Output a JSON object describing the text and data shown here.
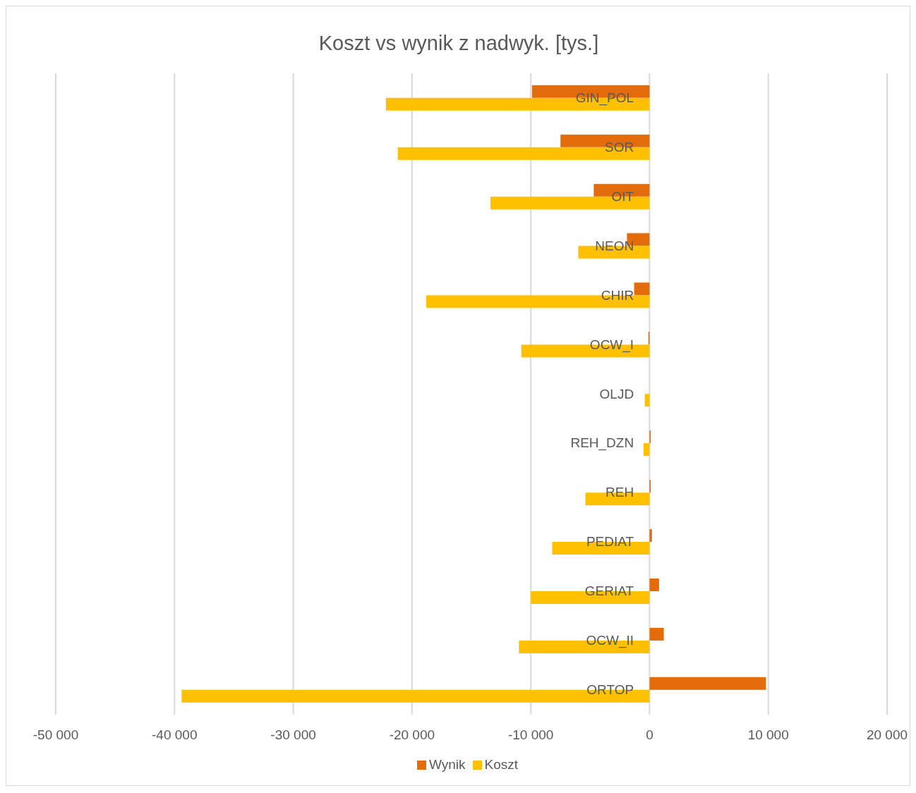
{
  "chart_data": {
    "type": "bar",
    "orientation": "horizontal",
    "title": "Koszt vs wynik z nadwyk. [tys.]",
    "categories": [
      "GIN_POL",
      "SOR",
      "OIT",
      "NEON",
      "CHIR",
      "OCW_I",
      "OLJD",
      "REH_DZN",
      "REH",
      "PEDIAT",
      "GERIAT",
      "OCW_II",
      "ORTOP"
    ],
    "series": [
      {
        "name": "Wynik",
        "color": "#e36c0a",
        "values": [
          -9900,
          -7500,
          -4700,
          -1900,
          -1300,
          -100,
          0,
          100,
          100,
          200,
          800,
          1200,
          9800
        ]
      },
      {
        "name": "Koszt",
        "color": "#ffc000",
        "values": [
          -22200,
          -21200,
          -13400,
          -6000,
          -18800,
          -10800,
          -400,
          -500,
          -5400,
          -8200,
          -10000,
          -11000,
          -39400
        ]
      }
    ],
    "xlim": [
      -50000,
      20000
    ],
    "xticks": [
      {
        "value": -50000,
        "label": "-50 000"
      },
      {
        "value": -40000,
        "label": "-40 000"
      },
      {
        "value": -30000,
        "label": "-30 000"
      },
      {
        "value": -20000,
        "label": "-20 000"
      },
      {
        "value": -10000,
        "label": "-10 000"
      },
      0,
      {
        "value": 10000,
        "label": "10 000"
      },
      {
        "value": 20000,
        "label": "20 000"
      }
    ],
    "grid": "x",
    "legend": "bottom"
  }
}
